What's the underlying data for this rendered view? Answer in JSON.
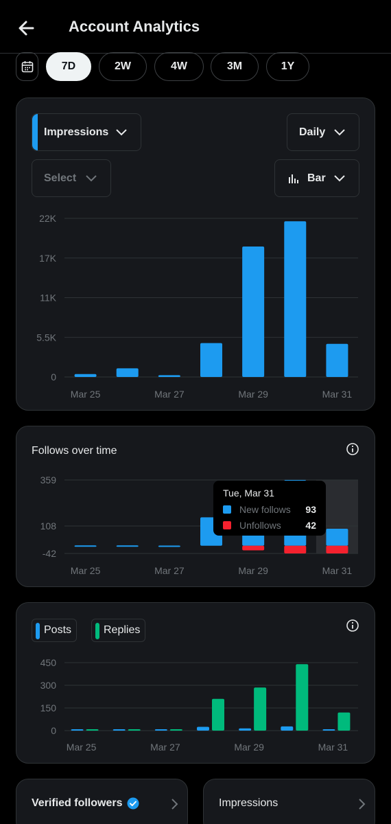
{
  "header": {
    "title": "Account Analytics"
  },
  "ranges": [
    "7D",
    "2W",
    "4W",
    "3M",
    "1Y"
  ],
  "active_range": "7D",
  "impressions_card": {
    "metric_dropdown": "Impressions",
    "period_dropdown": "Daily",
    "compare_dropdown": "Select",
    "chart_type_dropdown": "Bar"
  },
  "follows_card": {
    "title": "Follows over time"
  },
  "tooltip": {
    "date": "Tue, Mar 31",
    "new_label": "New follows",
    "new_value": "93",
    "unf_label": "Unfollows",
    "unf_value": "42"
  },
  "posts_card": {
    "posts_label": "Posts",
    "replies_label": "Replies"
  },
  "bottom": {
    "verified_label": "Verified followers",
    "impressions_label": "Impressions"
  },
  "colors": {
    "blue": "#1d9bf0",
    "red": "#f4212e",
    "green": "#00ba7c"
  },
  "chart_data": [
    {
      "type": "bar",
      "categories": [
        "Mar 25",
        "Mar 26",
        "Mar 27",
        "Mar 28",
        "Mar 29",
        "Mar 30",
        "Mar 31"
      ],
      "x_tick_labels": [
        "Mar 25",
        "Mar 27",
        "Mar 29",
        "Mar 31"
      ],
      "y_ticks": [
        "0",
        "5.5K",
        "11K",
        "17K",
        "22K"
      ],
      "ylim": [
        0,
        22000
      ],
      "series": [
        {
          "values": [
            400,
            1200,
            250,
            4700,
            18100,
            21600,
            4600
          ]
        }
      ]
    },
    {
      "type": "bar",
      "title": "Follows over time",
      "categories": [
        "Mar 25",
        "Mar 26",
        "Mar 27",
        "Mar 28",
        "Mar 29",
        "Mar 30",
        "Mar 31"
      ],
      "x_tick_labels": [
        "Mar 25",
        "Mar 27",
        "Mar 29",
        "Mar 31"
      ],
      "y_ticks": [
        "-42",
        "108",
        "359"
      ],
      "ylim": [
        -42,
        359
      ],
      "series": [
        {
          "name": "New follows",
          "values": [
            2,
            2,
            1,
            155,
            95,
            359,
            93
          ]
        },
        {
          "name": "Unfollows",
          "values": [
            0,
            0,
            0,
            0,
            -25,
            -42,
            -42
          ]
        }
      ]
    },
    {
      "type": "bar",
      "categories": [
        "Mar 25",
        "Mar 26",
        "Mar 27",
        "Mar 28",
        "Mar 29",
        "Mar 30",
        "Mar 31"
      ],
      "x_tick_labels": [
        "Mar 25",
        "Mar 27",
        "Mar 29",
        "Mar 31"
      ],
      "y_ticks": [
        "0",
        "150",
        "300",
        "450"
      ],
      "ylim": [
        0,
        450
      ],
      "series": [
        {
          "name": "Posts",
          "values": [
            2,
            3,
            6,
            25,
            15,
            28,
            8
          ]
        },
        {
          "name": "Replies",
          "values": [
            2,
            6,
            4,
            210,
            285,
            440,
            120
          ]
        }
      ]
    }
  ]
}
